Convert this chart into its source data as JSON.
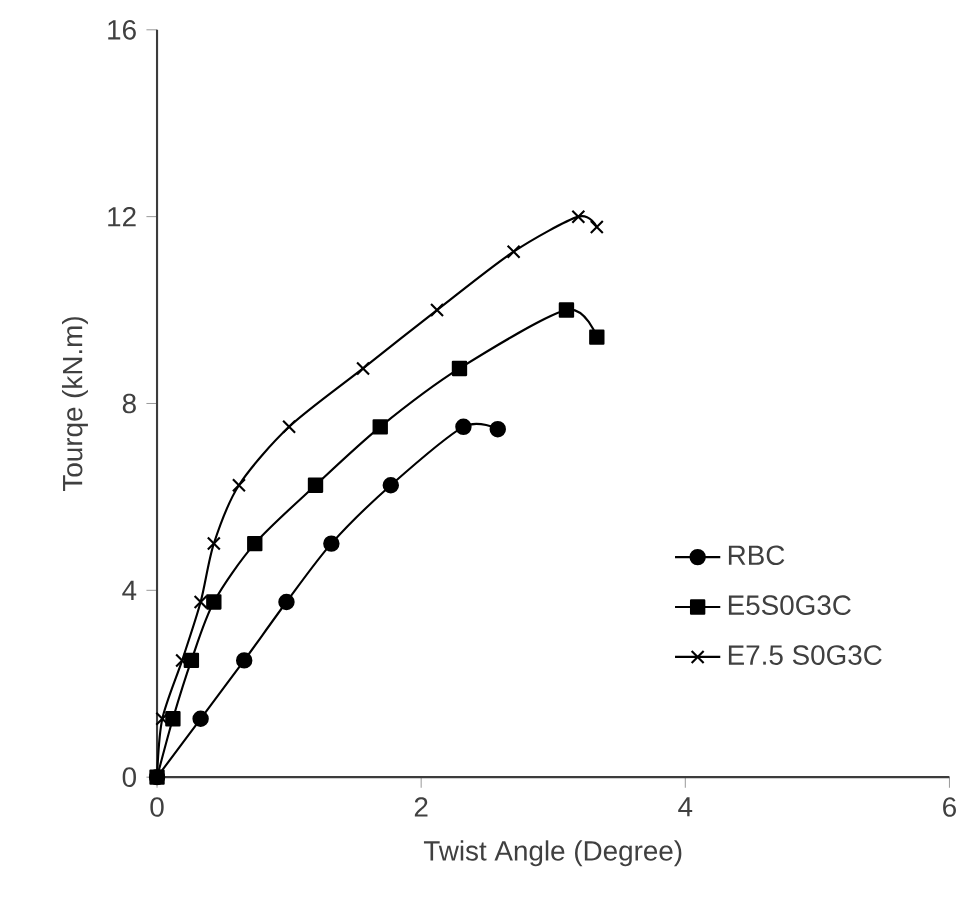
{
  "chart_data": {
    "type": "line",
    "xlabel": "Twist Angle (Degree)",
    "ylabel": "Tourqe (kN.m)",
    "xlim": [
      0,
      6
    ],
    "xticks": [
      0,
      2,
      4,
      6
    ],
    "ylim": [
      0,
      16
    ],
    "yticks": [
      0,
      4,
      8,
      12,
      16
    ],
    "grid": false,
    "legend": "right",
    "line_style": "solid",
    "series": [
      {
        "name": "RBC",
        "color": "#000000",
        "marker": "circle",
        "x": [
          0,
          0.33,
          0.66,
          0.98,
          1.32,
          1.77,
          2.32,
          2.58
        ],
        "values": [
          0,
          1.25,
          2.5,
          3.75,
          5,
          6.25,
          7.5,
          7.45
        ]
      },
      {
        "name": "E5S0G3C",
        "color": "#000000",
        "marker": "square",
        "x": [
          0,
          0.12,
          0.26,
          0.43,
          0.74,
          1.2,
          1.69,
          2.29,
          3.1,
          3.33
        ],
        "values": [
          0,
          1.25,
          2.5,
          3.75,
          5,
          6.25,
          7.5,
          8.75,
          10,
          9.42
        ]
      },
      {
        "name": "E7.5 S0G3C",
        "color": "#000000",
        "marker": "cross",
        "x": [
          0,
          0.04,
          0.19,
          0.33,
          0.43,
          0.62,
          1.0,
          1.56,
          2.12,
          2.7,
          3.19,
          3.33
        ],
        "values": [
          0,
          1.25,
          2.5,
          3.75,
          5,
          6.25,
          7.5,
          8.75,
          10,
          11.25,
          12,
          11.78
        ]
      }
    ]
  }
}
